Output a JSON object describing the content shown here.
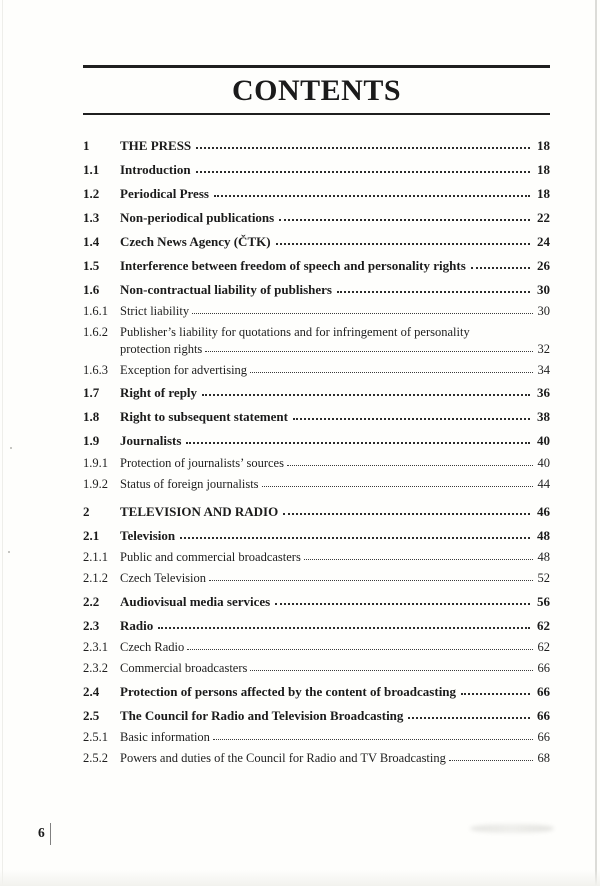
{
  "page": {
    "title": "CONTENTS",
    "footer_page_number": "6"
  },
  "colors": {
    "ink": "#1b1b1b",
    "paper": "#fefefc",
    "rule": "#1f1f1f"
  },
  "toc": {
    "entries": [
      {
        "num": "1",
        "title": "THE PRESS",
        "page": "18",
        "level": 0
      },
      {
        "num": "1.1",
        "title": "Introduction",
        "page": "18",
        "level": 1
      },
      {
        "num": "1.2",
        "title": "Periodical Press",
        "page": "18",
        "level": 1
      },
      {
        "num": "1.3",
        "title": "Non-periodical publications",
        "page": "22",
        "level": 1
      },
      {
        "num": "1.4",
        "title": "Czech News Agency (ČTK)",
        "page": "24",
        "level": 1
      },
      {
        "num": "1.5",
        "title": "Interference between freedom of speech and personality rights",
        "page": "26",
        "level": 1
      },
      {
        "num": "1.6",
        "title": "Non-contractual liability of publishers",
        "page": "30",
        "level": 1
      },
      {
        "num": "1.6.1",
        "title": "Strict liability",
        "page": "30",
        "level": 2
      },
      {
        "num": "1.6.2",
        "title": "Publisher’s liability for quotations and for infringement of personality",
        "title2": "protection rights",
        "page": "32",
        "level": 2
      },
      {
        "num": "1.6.3",
        "title": "Exception for advertising",
        "page": "34",
        "level": 2
      },
      {
        "num": "1.7",
        "title": "Right of reply",
        "page": "36",
        "level": 1
      },
      {
        "num": "1.8",
        "title": "Right to subsequent statement",
        "page": "38",
        "level": 1
      },
      {
        "num": "1.9",
        "title": "Journalists",
        "page": "40",
        "level": 1
      },
      {
        "num": "1.9.1",
        "title": "Protection of journalists’ sources",
        "page": "40",
        "level": 2
      },
      {
        "num": "1.9.2",
        "title": "Status of foreign journalists",
        "page": "44",
        "level": 2
      },
      {
        "num": "2",
        "title": "TELEVISION AND RADIO",
        "page": "46",
        "level": 0
      },
      {
        "num": "2.1",
        "title": "Television",
        "page": "48",
        "level": 1
      },
      {
        "num": "2.1.1",
        "title": "Public and commercial broadcasters",
        "page": "48",
        "level": 2
      },
      {
        "num": "2.1.2",
        "title": "Czech Television",
        "page": "52",
        "level": 2
      },
      {
        "num": "2.2",
        "title": "Audiovisual media services",
        "page": "56",
        "level": 1
      },
      {
        "num": "2.3",
        "title": "Radio",
        "page": "62",
        "level": 1
      },
      {
        "num": "2.3.1",
        "title": "Czech Radio",
        "page": "62",
        "level": 2
      },
      {
        "num": "2.3.2",
        "title": "Commercial broadcasters",
        "page": "66",
        "level": 2
      },
      {
        "num": "2.4",
        "title": "Protection of persons affected by the content of broadcasting",
        "page": "66",
        "level": 1
      },
      {
        "num": "2.5",
        "title": "The Council for Radio and Television Broadcasting",
        "page": "66",
        "level": 1
      },
      {
        "num": "2.5.1",
        "title": "Basic information",
        "page": "66",
        "level": 2
      },
      {
        "num": "2.5.2",
        "title": "Powers and duties of the Council for Radio and TV Broadcasting",
        "page": "68",
        "level": 2
      }
    ]
  }
}
